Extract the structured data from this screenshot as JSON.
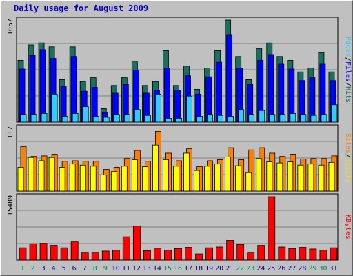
{
  "chart_data": [
    {
      "type": "bar",
      "title": "Daily usage for August 2009",
      "categories": [
        "1",
        "2",
        "3",
        "4",
        "5",
        "6",
        "7",
        "8",
        "9",
        "10",
        "11",
        "12",
        "13",
        "14",
        "15",
        "16",
        "17",
        "18",
        "19",
        "20",
        "21",
        "22",
        "23",
        "24",
        "25",
        "26",
        "27",
        "28",
        "29",
        "30",
        "31"
      ],
      "weekend_days": [
        "1",
        "2",
        "8",
        "9",
        "15",
        "16",
        "22",
        "23",
        "29",
        "30"
      ],
      "ylim": [
        0,
        1057
      ],
      "y_tick_label": "1057",
      "legend": [
        "Pages",
        "/",
        "Files",
        "/",
        "Hits"
      ],
      "series": [
        {
          "name": "Hits",
          "color": "#1a7060",
          "values": [
            640,
            800,
            820,
            780,
            440,
            780,
            420,
            460,
            140,
            380,
            460,
            630,
            380,
            420,
            740,
            380,
            580,
            340,
            560,
            740,
            1057,
            680,
            440,
            760,
            820,
            680,
            640,
            520,
            560,
            720,
            520
          ]
        },
        {
          "name": "Files",
          "color": "#0000ff",
          "values": [
            550,
            690,
            750,
            660,
            370,
            680,
            320,
            360,
            100,
            300,
            390,
            540,
            300,
            330,
            560,
            330,
            480,
            290,
            470,
            620,
            900,
            560,
            390,
            640,
            700,
            600,
            550,
            430,
            460,
            600,
            430
          ]
        },
        {
          "name": "Pages",
          "color": "#33ccff",
          "values": [
            80,
            80,
            90,
            290,
            60,
            90,
            160,
            60,
            50,
            80,
            80,
            130,
            70,
            290,
            40,
            40,
            270,
            60,
            80,
            70,
            60,
            130,
            80,
            120,
            80,
            80,
            90,
            80,
            70,
            80,
            180
          ]
        }
      ]
    },
    {
      "type": "bar",
      "categories": [
        "1",
        "2",
        "3",
        "4",
        "5",
        "6",
        "7",
        "8",
        "9",
        "10",
        "11",
        "12",
        "13",
        "14",
        "15",
        "16",
        "17",
        "18",
        "19",
        "20",
        "21",
        "22",
        "23",
        "24",
        "25",
        "26",
        "27",
        "28",
        "29",
        "30",
        "31"
      ],
      "ylim": [
        0,
        117
      ],
      "y_tick_label": "117",
      "legend": [
        "Sites",
        "/",
        "Visits"
      ],
      "series": [
        {
          "name": "Visits",
          "color": "#ff8000",
          "values": [
            82,
            64,
            65,
            68,
            55,
            56,
            55,
            55,
            40,
            44,
            60,
            75,
            55,
            110,
            70,
            56,
            78,
            45,
            56,
            58,
            80,
            58,
            76,
            80,
            70,
            64,
            68,
            59,
            60,
            60,
            65
          ]
        },
        {
          "name": "Sites",
          "color": "#ffff00",
          "values": [
            44,
            62,
            56,
            62,
            44,
            50,
            48,
            46,
            30,
            36,
            46,
            58,
            45,
            85,
            58,
            46,
            70,
            38,
            46,
            50,
            63,
            47,
            34,
            60,
            54,
            52,
            54,
            48,
            50,
            48,
            53
          ]
        }
      ]
    },
    {
      "type": "bar",
      "categories": [
        "1",
        "2",
        "3",
        "4",
        "5",
        "6",
        "7",
        "8",
        "9",
        "10",
        "11",
        "12",
        "13",
        "14",
        "15",
        "16",
        "17",
        "18",
        "19",
        "20",
        "21",
        "22",
        "23",
        "24",
        "25",
        "26",
        "27",
        "28",
        "29",
        "30",
        "31"
      ],
      "ylim": [
        0,
        15489
      ],
      "y_tick_label": "15489",
      "legend": [
        "KBytes"
      ],
      "series": [
        {
          "name": "KBytes",
          "color": "#ff0000",
          "values": [
            3000,
            4000,
            4100,
            3600,
            3000,
            4600,
            1900,
            1900,
            2200,
            2400,
            5700,
            8300,
            2300,
            2900,
            2400,
            2800,
            3100,
            1500,
            3000,
            3200,
            4800,
            3800,
            1900,
            3600,
            15489,
            3200,
            2800,
            3100,
            2700,
            2400,
            3000
          ]
        }
      ]
    }
  ],
  "colors": {
    "background": "#c0c0c0",
    "plot": "#c0c0c0",
    "weekday_label": "#000080",
    "weekend_label": "#00805c",
    "title": "#0000c0"
  }
}
